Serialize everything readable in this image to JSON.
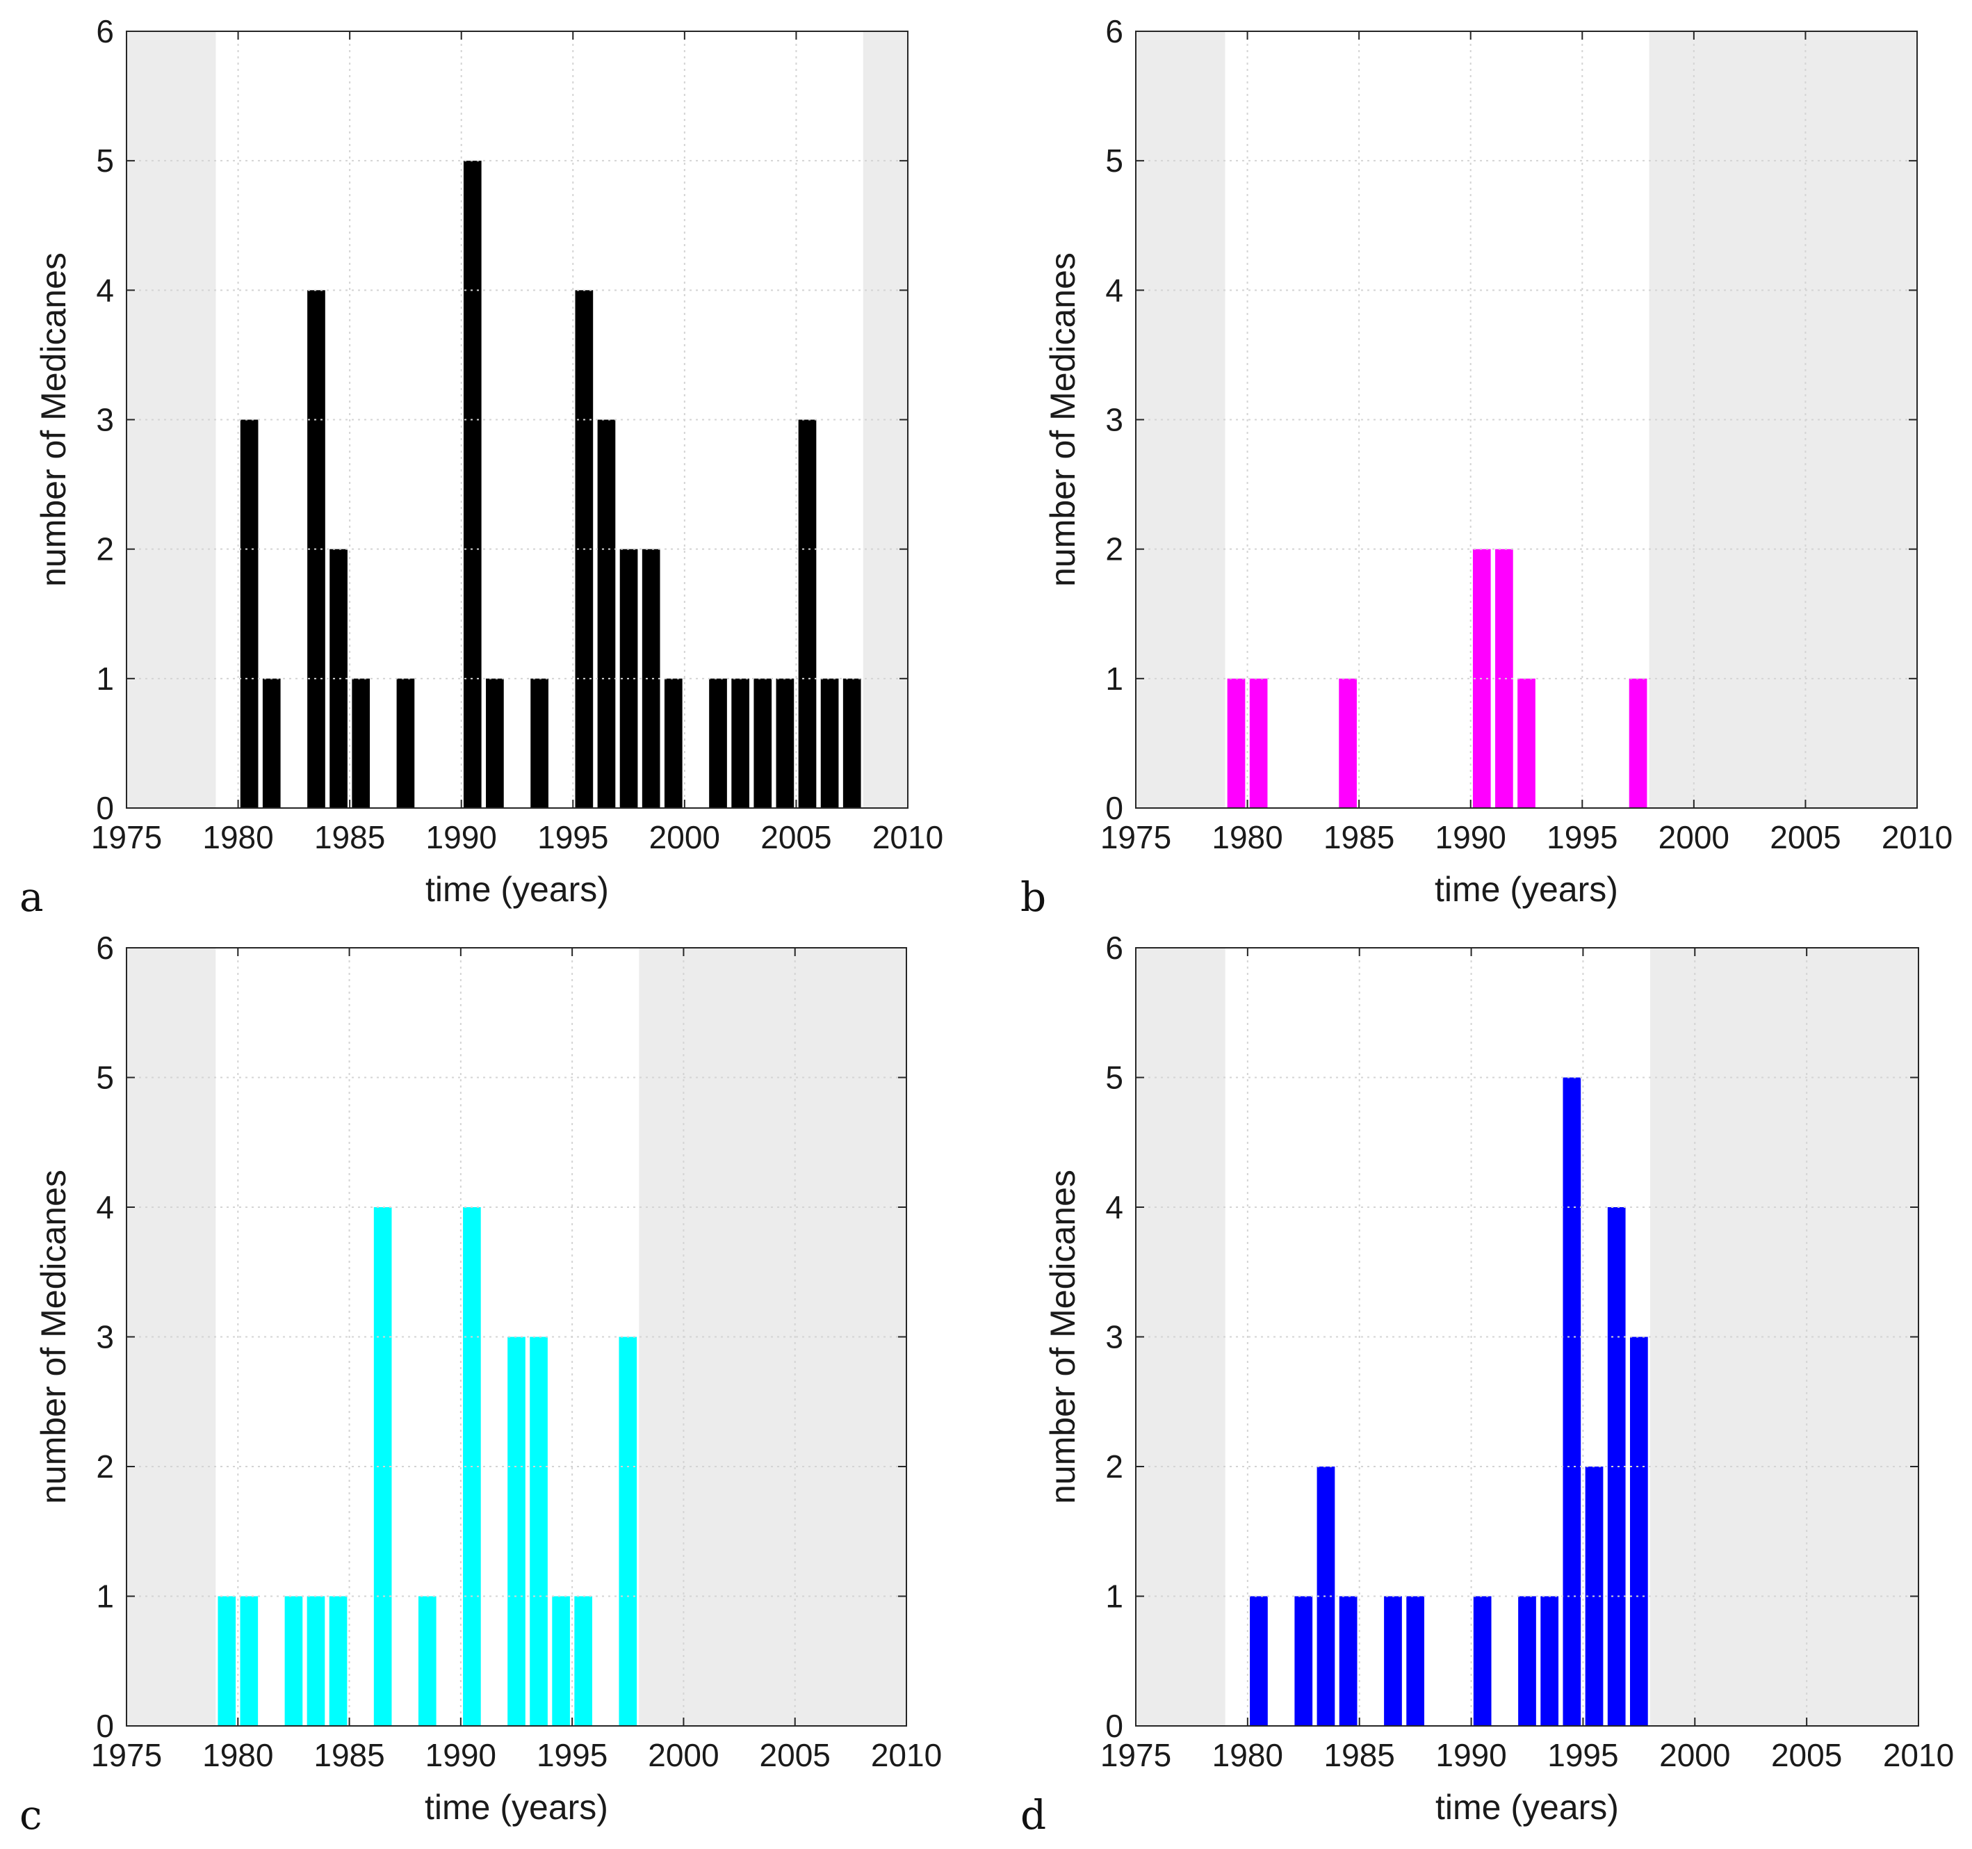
{
  "chart_data": [
    {
      "panel": "a",
      "type": "bar",
      "color": "#000000",
      "xlabel": "time (years)",
      "ylabel": "number of Medicanes",
      "xlim": [
        1975,
        2010
      ],
      "ylim": [
        0,
        6
      ],
      "xticks": [
        1975,
        1980,
        1985,
        1990,
        1995,
        2000,
        2005,
        2010
      ],
      "yticks": [
        0,
        1,
        2,
        3,
        4,
        5,
        6
      ],
      "grid": true,
      "shaded_out_of_period": [
        [
          1975,
          1979
        ],
        [
          2008,
          2010
        ]
      ],
      "x": [
        1980,
        1981,
        1983,
        1984,
        1985,
        1987,
        1990,
        1991,
        1993,
        1995,
        1996,
        1997,
        1998,
        1999,
        2001,
        2002,
        2003,
        2004,
        2005,
        2006,
        2007
      ],
      "values": [
        3,
        1,
        4,
        2,
        1,
        1,
        5,
        1,
        1,
        4,
        3,
        2,
        2,
        1,
        1,
        1,
        1,
        1,
        3,
        1,
        1
      ]
    },
    {
      "panel": "b",
      "type": "bar",
      "color": "#ff00ff",
      "xlabel": "time (years)",
      "ylabel": "number of Medicanes",
      "xlim": [
        1975,
        2010
      ],
      "ylim": [
        0,
        6
      ],
      "xticks": [
        1975,
        1980,
        1985,
        1990,
        1995,
        2000,
        2005,
        2010
      ],
      "yticks": [
        0,
        1,
        2,
        3,
        4,
        5,
        6
      ],
      "grid": true,
      "shaded_out_of_period": [
        [
          1975,
          1979
        ],
        [
          1998,
          2010
        ]
      ],
      "x": [
        1979,
        1980,
        1984,
        1990,
        1991,
        1992,
        1997
      ],
      "values": [
        1,
        1,
        1,
        2,
        2,
        1,
        1
      ]
    },
    {
      "panel": "c",
      "type": "bar",
      "color": "#00ffff",
      "xlabel": "time (years)",
      "ylabel": "number of Medicanes",
      "xlim": [
        1975,
        2010
      ],
      "ylim": [
        0,
        6
      ],
      "xticks": [
        1975,
        1980,
        1985,
        1990,
        1995,
        2000,
        2005,
        2010
      ],
      "yticks": [
        0,
        1,
        2,
        3,
        4,
        5,
        6
      ],
      "grid": true,
      "shaded_out_of_period": [
        [
          1975,
          1979
        ],
        [
          1998,
          2010
        ]
      ],
      "x": [
        1979,
        1980,
        1982,
        1983,
        1984,
        1986,
        1988,
        1990,
        1992,
        1993,
        1994,
        1995,
        1997
      ],
      "values": [
        1,
        1,
        1,
        1,
        1,
        4,
        1,
        4,
        3,
        3,
        1,
        1,
        3
      ]
    },
    {
      "panel": "d",
      "type": "bar",
      "color": "#0000ff",
      "xlabel": "time (years)",
      "ylabel": "number of Medicanes",
      "xlim": [
        1975,
        2010
      ],
      "ylim": [
        0,
        6
      ],
      "xticks": [
        1975,
        1980,
        1985,
        1990,
        1995,
        2000,
        2005,
        2010
      ],
      "yticks": [
        0,
        1,
        2,
        3,
        4,
        5,
        6
      ],
      "grid": true,
      "shaded_out_of_period": [
        [
          1975,
          1979
        ],
        [
          1998,
          2010
        ]
      ],
      "x": [
        1980,
        1982,
        1983,
        1984,
        1986,
        1987,
        1990,
        1992,
        1993,
        1994,
        1995,
        1996,
        1997
      ],
      "values": [
        1,
        1,
        2,
        1,
        1,
        1,
        1,
        1,
        1,
        5,
        2,
        4,
        3
      ]
    }
  ],
  "style": {
    "shade_color": "#ececec",
    "grid_color": "#d4d4d4",
    "axis_color": "#262626"
  }
}
